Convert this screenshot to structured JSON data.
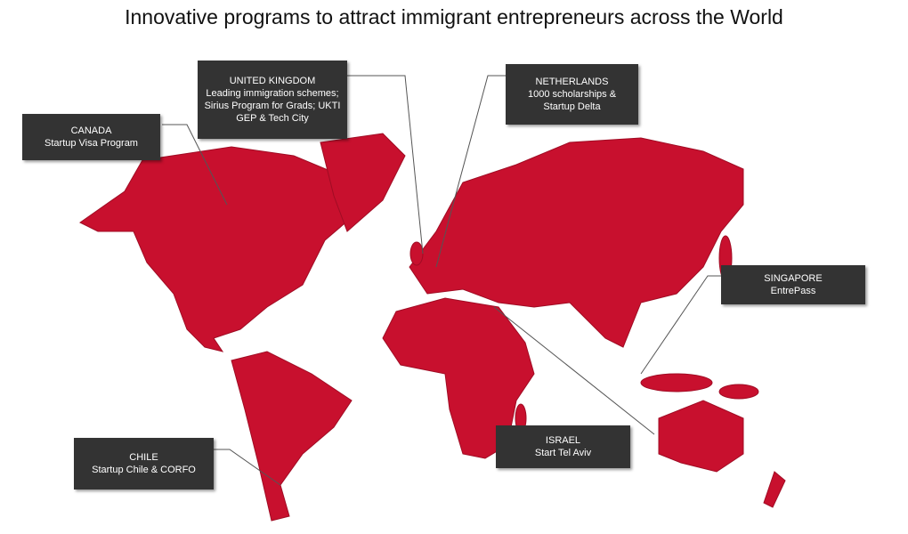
{
  "title": "Innovative programs to attract immigrant entrepreneurs across the World",
  "callouts": [
    {
      "country": "CANADA",
      "lines": [
        "Startup Visa Program"
      ]
    },
    {
      "country": "UNITED KINGDOM",
      "lines": [
        "Leading immigration schemes;",
        "Sirius Program for Grads;  UKTI",
        "GEP & Tech City"
      ]
    },
    {
      "country": "NETHERLANDS",
      "lines": [
        "1000 scholarships &",
        "Startup Delta"
      ]
    },
    {
      "country": "SINGAPORE",
      "lines": [
        "EntrePass"
      ]
    },
    {
      "country": "ISRAEL",
      "lines": [
        "Start Tel Aviv"
      ]
    },
    {
      "country": "CHILE",
      "lines": [
        "Startup Chile & CORFO"
      ]
    }
  ]
}
